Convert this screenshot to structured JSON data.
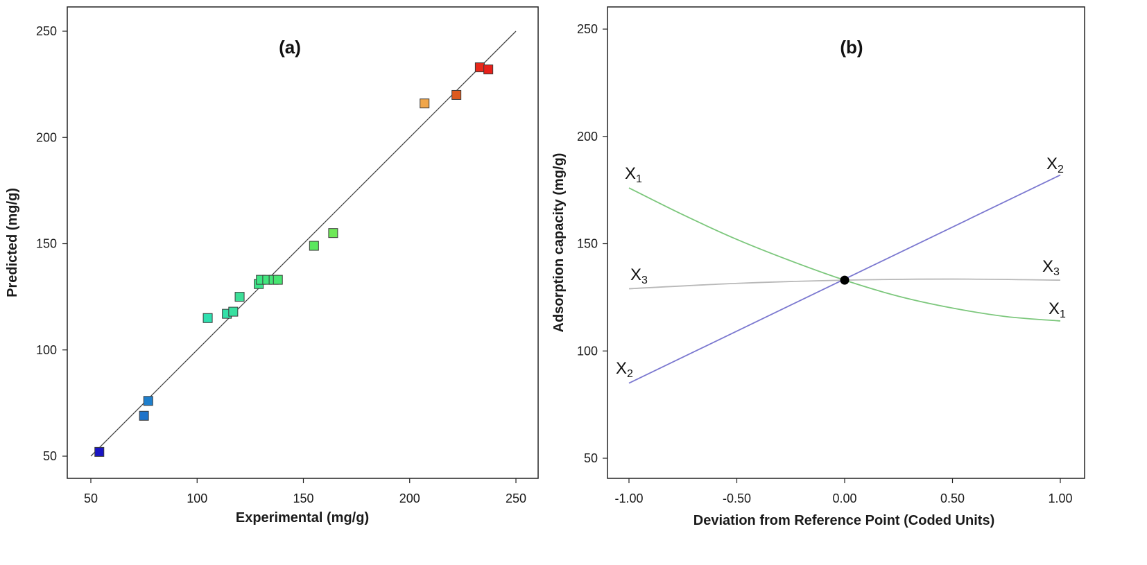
{
  "chart_data": [
    {
      "type": "scatter",
      "title": "(a)",
      "xlabel": "Experimental (mg/g)",
      "ylabel": "Predicted (mg/g)",
      "xlim": [
        45,
        260
      ],
      "ylim": [
        40,
        260
      ],
      "xticks": [
        "50",
        "100",
        "150",
        "200",
        "250"
      ],
      "yticks": [
        "50",
        "100",
        "150",
        "200",
        "250"
      ],
      "reference_line": {
        "x": [
          50,
          250
        ],
        "y": [
          50,
          250
        ]
      },
      "points": [
        {
          "x": 54,
          "y": 52,
          "color": "#1a14c4"
        },
        {
          "x": 75,
          "y": 69,
          "color": "#1f73c9"
        },
        {
          "x": 77,
          "y": 76,
          "color": "#1f7fcc"
        },
        {
          "x": 105,
          "y": 115,
          "color": "#2fe0b0"
        },
        {
          "x": 114,
          "y": 117,
          "color": "#33e0a8"
        },
        {
          "x": 117,
          "y": 118,
          "color": "#38e0a0"
        },
        {
          "x": 120,
          "y": 125,
          "color": "#3ddf98"
        },
        {
          "x": 129,
          "y": 131,
          "color": "#3de58a"
        },
        {
          "x": 130,
          "y": 133,
          "color": "#3fe684"
        },
        {
          "x": 133,
          "y": 133,
          "color": "#42e67e"
        },
        {
          "x": 136,
          "y": 133,
          "color": "#45e678"
        },
        {
          "x": 138,
          "y": 133,
          "color": "#48e672"
        },
        {
          "x": 155,
          "y": 149,
          "color": "#5ae85e"
        },
        {
          "x": 164,
          "y": 155,
          "color": "#6ee857"
        },
        {
          "x": 207,
          "y": 216,
          "color": "#f0a64a"
        },
        {
          "x": 222,
          "y": 220,
          "color": "#dd5a1e"
        },
        {
          "x": 233,
          "y": 233,
          "color": "#e8281a"
        },
        {
          "x": 237,
          "y": 232,
          "color": "#e8201a"
        }
      ]
    },
    {
      "type": "line",
      "title": "(b)",
      "xlabel": "Deviation from Reference Point (Coded Units)",
      "ylabel": "Adsorption capacity (mg/g)",
      "xlim": [
        -1.1,
        1.1
      ],
      "ylim": [
        40,
        260
      ],
      "xticks": [
        "-1.00",
        "-0.50",
        "0.00",
        "0.50",
        "1.00"
      ],
      "yticks": [
        "50",
        "100",
        "150",
        "200",
        "250"
      ],
      "reference_point": {
        "x": 0,
        "y": 133
      },
      "series": [
        {
          "name": "X1",
          "color": "#7cc77c",
          "x": [
            -1,
            -0.75,
            -0.5,
            -0.25,
            0,
            0.25,
            0.5,
            0.75,
            1
          ],
          "y": [
            176,
            163.5,
            152,
            142,
            133,
            125.5,
            120,
            116,
            114
          ]
        },
        {
          "name": "X2",
          "color": "#7b78d0",
          "x": [
            -1,
            1
          ],
          "y": [
            85,
            182
          ]
        },
        {
          "name": "X3",
          "color": "#b8b8b8",
          "x": [
            -1,
            -0.5,
            0,
            0.5,
            1
          ],
          "y": [
            129,
            131.5,
            133,
            133.5,
            133
          ]
        }
      ],
      "curve_labels": {
        "x1_left": {
          "main": "X",
          "sub": "1"
        },
        "x1_right": {
          "main": "X",
          "sub": "1"
        },
        "x2_left": {
          "main": "X",
          "sub": "2"
        },
        "x2_right": {
          "main": "X",
          "sub": "2"
        },
        "x3_left": {
          "main": "X",
          "sub": "3"
        },
        "x3_right": {
          "main": "X",
          "sub": "3"
        }
      }
    }
  ]
}
